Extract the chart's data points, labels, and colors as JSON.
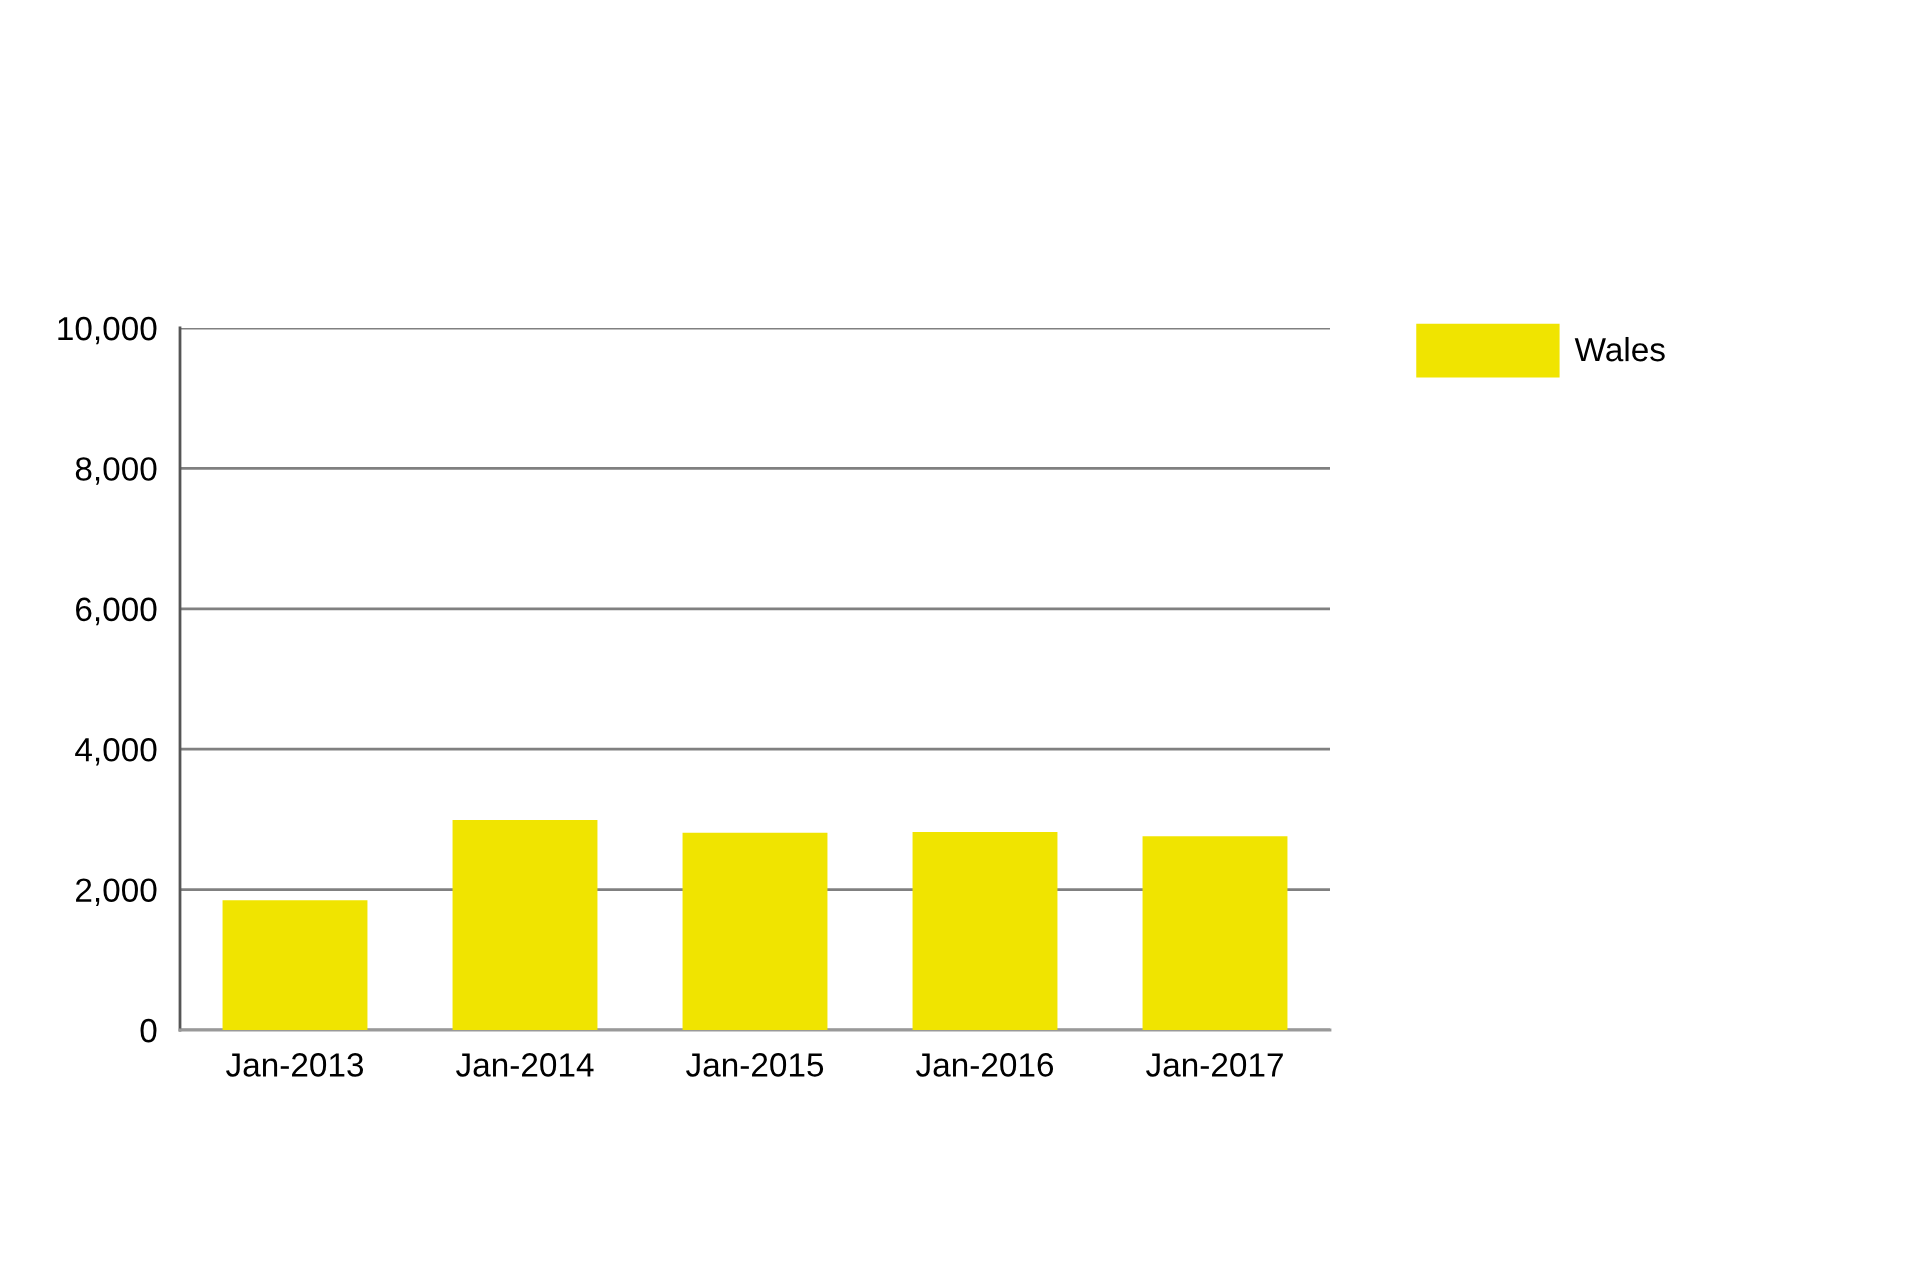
{
  "chart_data": {
    "type": "bar",
    "categories": [
      "Jan-2013",
      "Jan-2014",
      "Jan-2015",
      "Jan-2016",
      "Jan-2017"
    ],
    "series": [
      {
        "name": "Wales",
        "color": "#f0e400",
        "values": [
          1850,
          2990,
          2810,
          2820,
          2760
        ]
      }
    ],
    "ylim": [
      0,
      10000
    ],
    "yticks": [
      {
        "value": 0,
        "label": "0"
      },
      {
        "value": 2000,
        "label": "2,000"
      },
      {
        "value": 4000,
        "label": "4,000"
      },
      {
        "value": 6000,
        "label": "6,000"
      },
      {
        "value": 8000,
        "label": "8,000"
      },
      {
        "value": 10000,
        "label": "10,000"
      }
    ],
    "grid": "y",
    "legend": "top right"
  }
}
